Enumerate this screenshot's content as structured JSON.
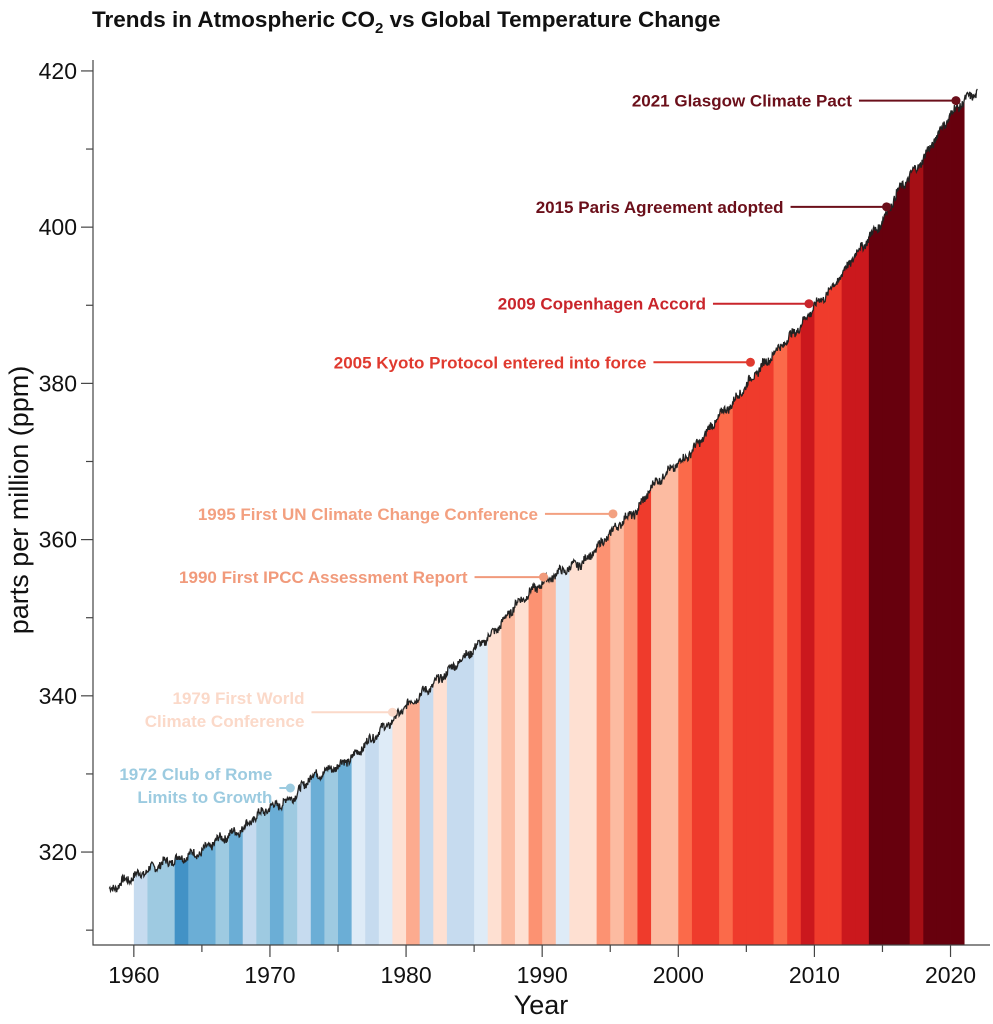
{
  "chart_data": {
    "type": "area",
    "title": "Trends in Atmospheric CO",
    "title_subscript": "2",
    "title_suffix": " vs Global Temperature Change",
    "xlabel": "Year",
    "ylabel": "parts per million (ppm)",
    "xlim": [
      1957.0,
      2022.9
    ],
    "ylim": [
      308.1,
      421.4
    ],
    "xticks": [
      1960,
      1970,
      1980,
      1990,
      2000,
      2010,
      2020
    ],
    "xminor": [
      1965,
      1975,
      1985,
      1995,
      2005,
      2015
    ],
    "yticks": [
      320,
      340,
      360,
      380,
      400,
      420
    ],
    "yminor": [
      310,
      330,
      350,
      370,
      390,
      410
    ],
    "grid": false,
    "co2_series": {
      "x": [
        1958.2,
        1959,
        1960,
        1961,
        1962,
        1963,
        1964,
        1965,
        1966,
        1967,
        1968,
        1969,
        1970,
        1971,
        1972,
        1973,
        1974,
        1975,
        1976,
        1977,
        1978,
        1979,
        1980,
        1981,
        1982,
        1983,
        1984,
        1985,
        1986,
        1987,
        1988,
        1989,
        1990,
        1991,
        1992,
        1993,
        1994,
        1995,
        1996,
        1997,
        1998,
        1999,
        2000,
        2001,
        2002,
        2003,
        2004,
        2005,
        2006,
        2007,
        2008,
        2009,
        2010,
        2011,
        2012,
        2013,
        2014,
        2015,
        2016,
        2017,
        2018,
        2019,
        2020,
        2021,
        2022
      ],
      "y": [
        315.0,
        316.0,
        316.9,
        317.6,
        318.5,
        319.0,
        319.6,
        320.0,
        321.4,
        322.2,
        323.0,
        324.6,
        325.7,
        326.3,
        327.5,
        329.7,
        330.2,
        331.1,
        332.0,
        333.8,
        335.4,
        336.8,
        338.7,
        340.1,
        341.4,
        343.0,
        344.6,
        346.0,
        347.4,
        349.2,
        351.6,
        353.1,
        354.4,
        355.6,
        356.4,
        357.1,
        358.8,
        360.8,
        362.6,
        363.7,
        366.7,
        368.4,
        369.7,
        371.3,
        373.5,
        375.8,
        377.5,
        379.8,
        381.9,
        383.8,
        385.6,
        387.4,
        389.9,
        391.6,
        393.9,
        396.5,
        398.6,
        400.8,
        404.2,
        406.5,
        408.7,
        411.7,
        414.4,
        416.2,
        417.3
      ]
    },
    "temperature_stripes": {
      "years_start": 1960,
      "colors": [
        "#c6dbef",
        "#9ecae1",
        "#9ecae1",
        "#4292c6",
        "#6baed6",
        "#6baed6",
        "#9ecae1",
        "#6baed6",
        "#c6dbef",
        "#9ecae1",
        "#6baed6",
        "#9ecae1",
        "#c6dbef",
        "#6baed6",
        "#9ecae1",
        "#6baed6",
        "#deebf7",
        "#c6dbef",
        "#deebf7",
        "#fee0d2",
        "#fcab8f",
        "#c6dbef",
        "#fee0d2",
        "#c6dbef",
        "#c6dbef",
        "#deebf7",
        "#fee0d2",
        "#fcbba1",
        "#fee0d2",
        "#fc9272",
        "#fcbba1",
        "#deebf7",
        "#fee0d2",
        "#fee0d2",
        "#fc9272",
        "#fcbba1",
        "#fc9272",
        "#ef3b2c",
        "#fcbba1",
        "#fcbba1",
        "#fb6a4a",
        "#ef3b2c",
        "#ef3b2c",
        "#fb6a4a",
        "#ef3b2c",
        "#ef3b2c",
        "#ef3b2c",
        "#fb6a4a",
        "#ef3b2c",
        "#cb181d",
        "#ef3b2c",
        "#ef3b2c",
        "#cb181d",
        "#cb181d",
        "#67000d",
        "#67000d",
        "#67000d",
        "#a50f15",
        "#67000d",
        "#67000d",
        "#67000d"
      ]
    },
    "annotations": [
      {
        "lines": [
          "2021 Glasgow Climate Pact"
        ],
        "year": 2020.4,
        "ppm": 416.2,
        "color": "#6b0f1a"
      },
      {
        "lines": [
          "2015 Paris Agreement adopted"
        ],
        "year": 2015.3,
        "ppm": 402.6,
        "color": "#6b0f1a"
      },
      {
        "lines": [
          "2009 Copenhagen Accord"
        ],
        "year": 2009.6,
        "ppm": 390.2,
        "color": "#c9252b"
      },
      {
        "lines": [
          "2005 Kyoto Protocol entered into force"
        ],
        "year": 2005.3,
        "ppm": 382.7,
        "color": "#e03a2f"
      },
      {
        "lines": [
          "1995 First UN Climate Change Conference"
        ],
        "year": 1995.2,
        "ppm": 363.3,
        "color": "#f3a080"
      },
      {
        "lines": [
          "1990 First IPCC Assessment Report"
        ],
        "year": 1990.1,
        "ppm": 355.2,
        "color": "#f19a7b"
      },
      {
        "lines": [
          "1979 First World",
          "Climate Conference"
        ],
        "year": 1979.0,
        "ppm": 337.9,
        "color": "#fbd9c9"
      },
      {
        "lines": [
          "1972 Club of Rome",
          "Limits to Growth"
        ],
        "year": 1971.5,
        "ppm": 328.2,
        "color": "#9ccbe0"
      }
    ]
  }
}
